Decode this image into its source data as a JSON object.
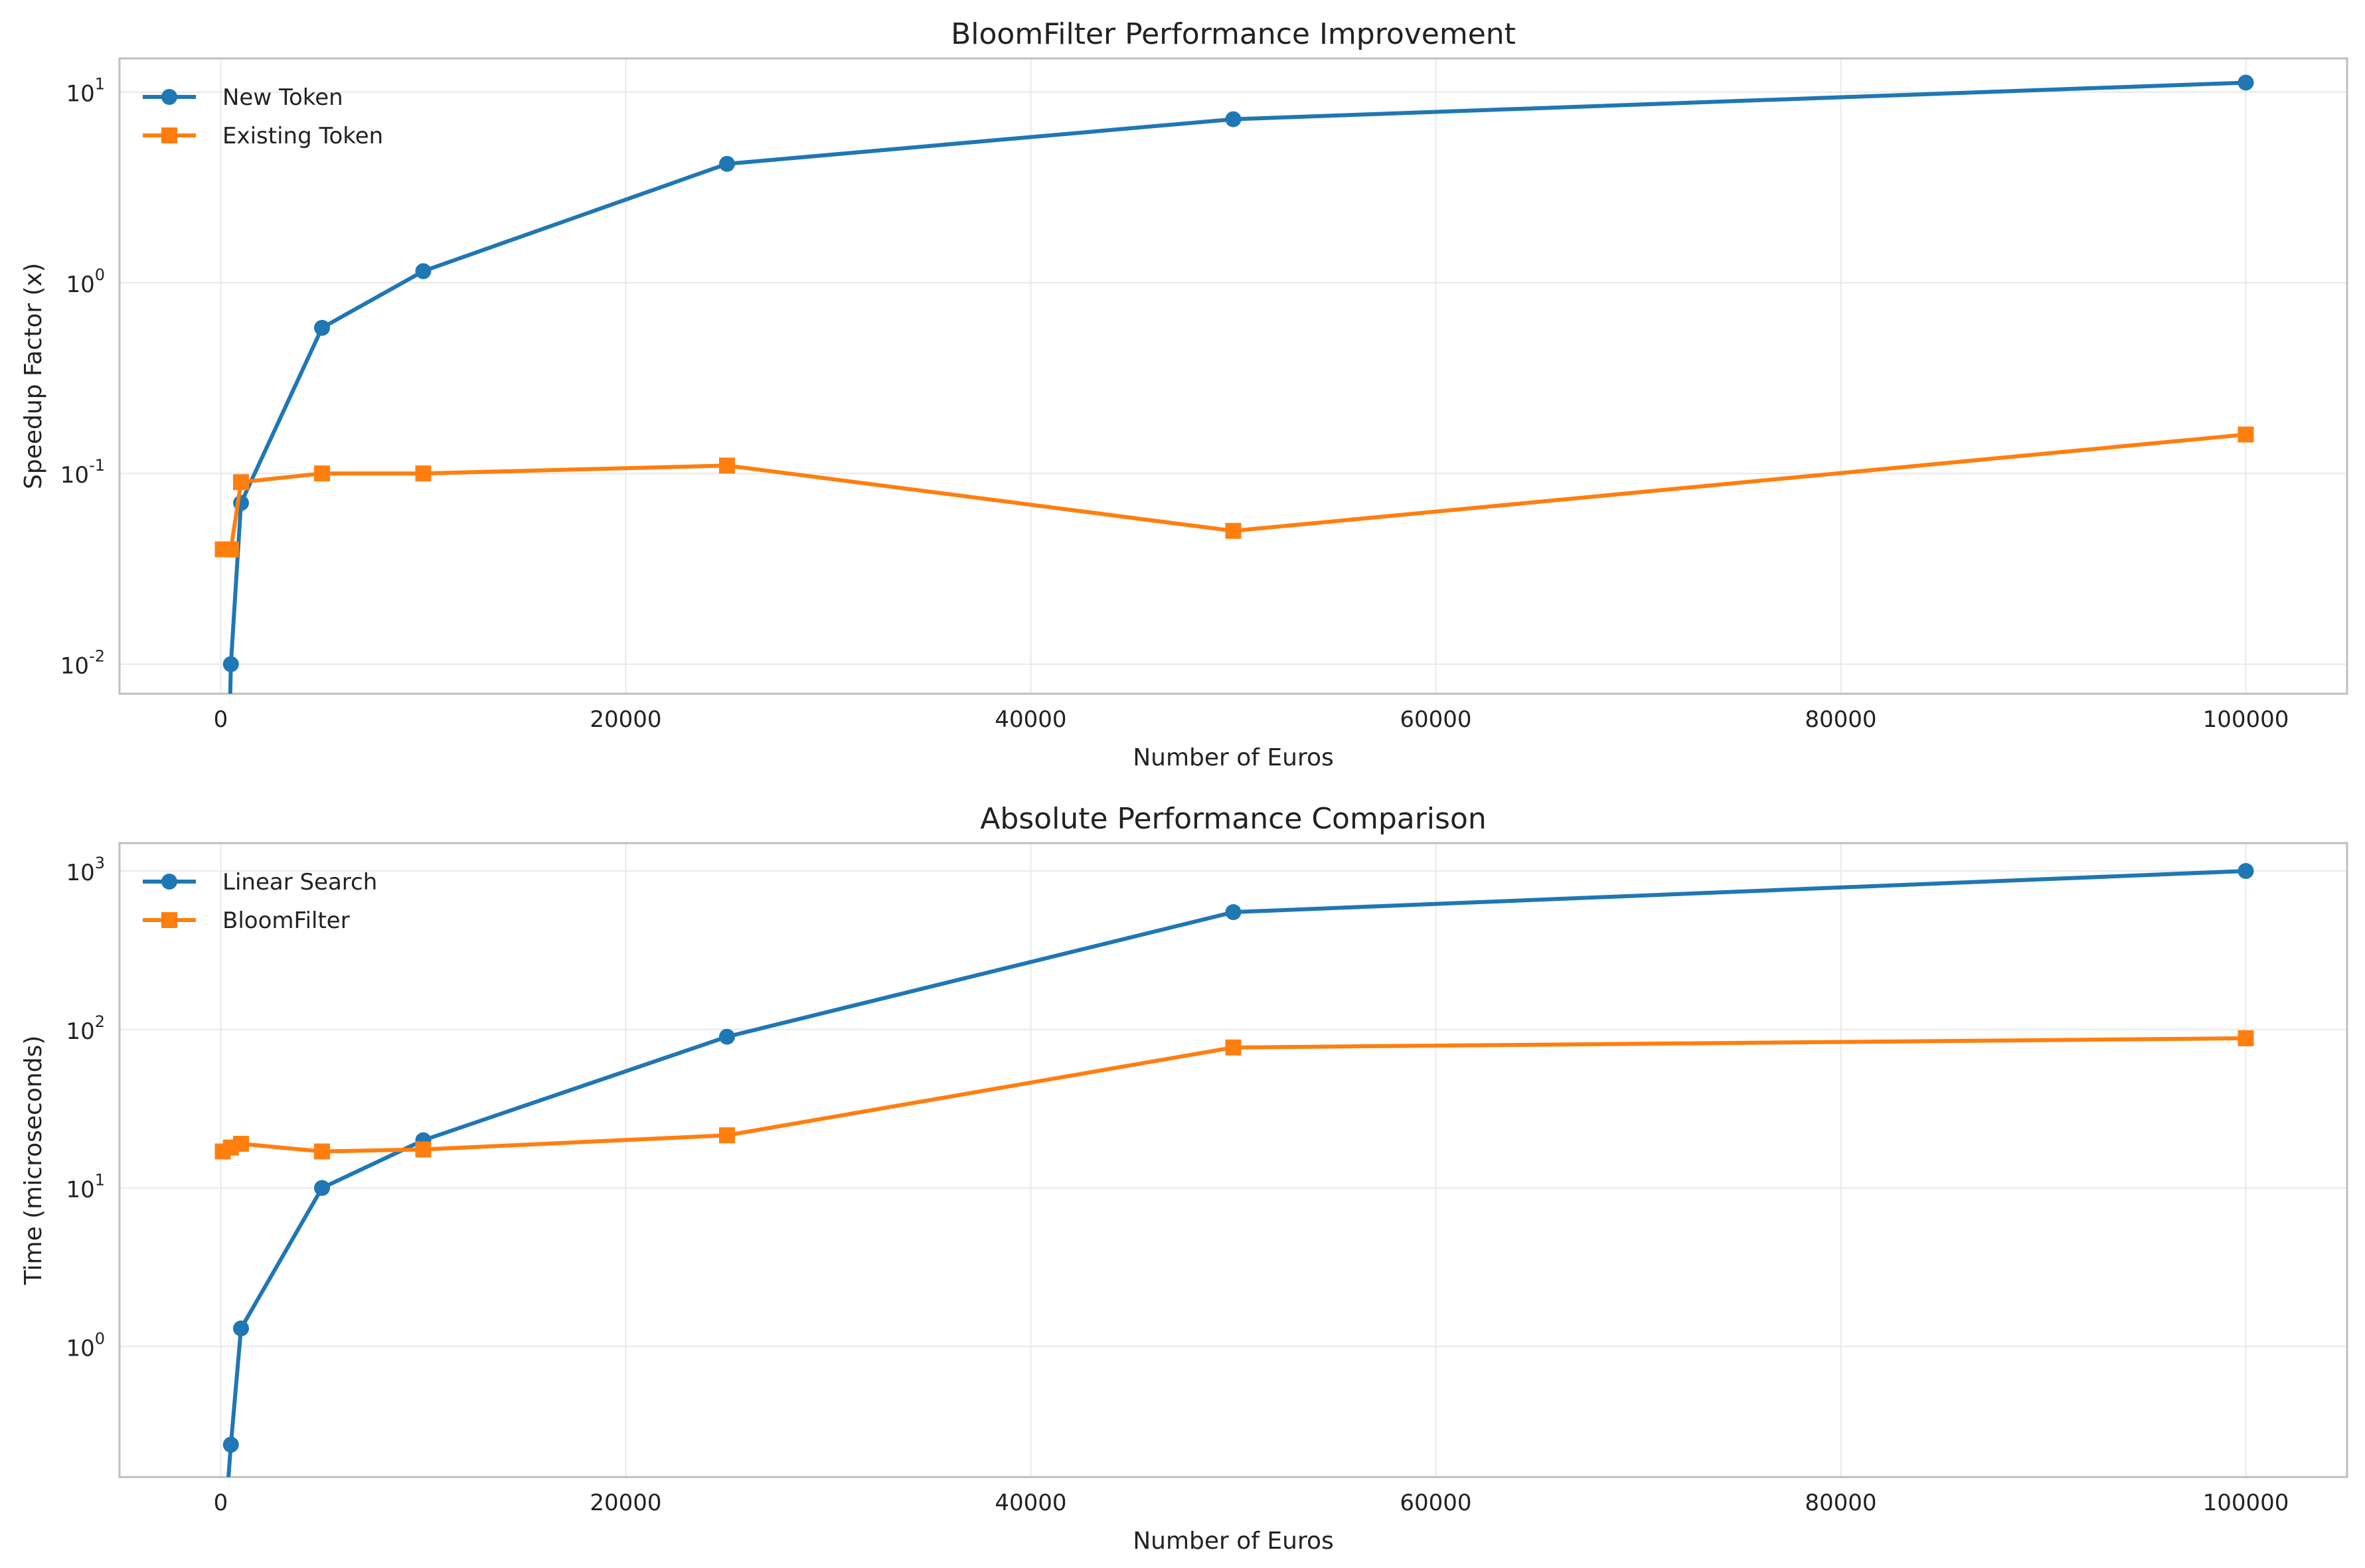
{
  "colors": {
    "series1": "#1f77b4",
    "series2": "#ff7f0e"
  },
  "chart_data": [
    {
      "type": "line",
      "title": "BloomFilter Performance Improvement",
      "xlabel": "Number of Euros",
      "ylabel": "Speedup Factor (x)",
      "yscale": "log",
      "xlim": [
        -5000,
        105000
      ],
      "ylim": [
        0.007,
        15
      ],
      "x_ticks": [
        0,
        20000,
        40000,
        60000,
        80000,
        100000
      ],
      "y_tick_exponents": [
        -2,
        -1,
        0,
        1
      ],
      "grid": true,
      "legend_position": "upper-left",
      "series": [
        {
          "name": "New Token",
          "marker": "circle",
          "color": "#1f77b4",
          "x": [
            100,
            500,
            1000,
            5000,
            10000,
            25000,
            50000,
            100000
          ],
          "y": [
            0.0001,
            0.01,
            0.07,
            0.58,
            1.15,
            4.2,
            7.2,
            11.2
          ]
        },
        {
          "name": "Existing Token",
          "marker": "square",
          "color": "#ff7f0e",
          "x": [
            100,
            500,
            1000,
            5000,
            10000,
            25000,
            50000,
            100000
          ],
          "y": [
            0.04,
            0.04,
            0.09,
            0.1,
            0.1,
            0.11,
            0.05,
            0.16
          ]
        }
      ]
    },
    {
      "type": "line",
      "title": "Absolute Performance Comparison",
      "xlabel": "Number of Euros",
      "ylabel": "Time (microseconds)",
      "yscale": "log",
      "xlim": [
        -5000,
        105000
      ],
      "ylim": [
        0.15,
        1500
      ],
      "x_ticks": [
        0,
        20000,
        40000,
        60000,
        80000,
        100000
      ],
      "y_tick_exponents": [
        0,
        1,
        2,
        3
      ],
      "grid": true,
      "legend_position": "upper-left",
      "series": [
        {
          "name": "Linear Search",
          "marker": "circle",
          "color": "#1f77b4",
          "x": [
            100,
            500,
            1000,
            5000,
            10000,
            25000,
            50000,
            100000
          ],
          "y": [
            0.05,
            0.24,
            1.3,
            10,
            20,
            90,
            550,
            1000
          ]
        },
        {
          "name": "BloomFilter",
          "marker": "square",
          "color": "#ff7f0e",
          "x": [
            100,
            500,
            1000,
            5000,
            10000,
            25000,
            50000,
            100000
          ],
          "y": [
            17,
            18,
            19,
            17,
            17.5,
            21.5,
            77,
            88
          ]
        }
      ]
    }
  ]
}
